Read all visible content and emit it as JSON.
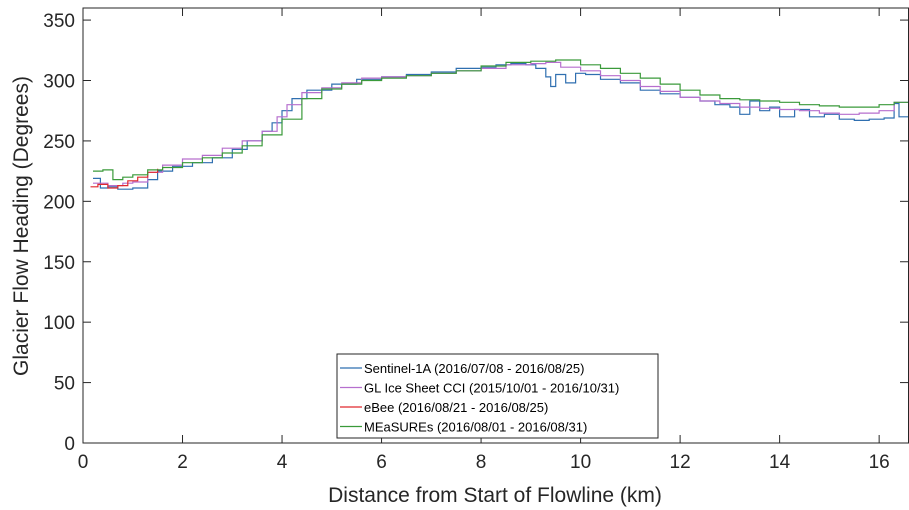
{
  "chart_data": {
    "type": "line",
    "title": "",
    "xlabel": "Distance from Start of Flowline (km)",
    "ylabel": "Glacier Flow Heading (Degrees)",
    "xlim": [
      0,
      16.6
    ],
    "ylim": [
      0,
      360
    ],
    "xticks": [
      0,
      2,
      4,
      6,
      8,
      10,
      12,
      14,
      16
    ],
    "yticks": [
      0,
      50,
      100,
      150,
      200,
      250,
      300,
      350
    ],
    "grid": false,
    "legend_position": "bottom-center",
    "series": [
      {
        "name": "Sentinel-1A (2016/07/08 - 2016/08/25)",
        "color": "#2f6fb0",
        "x": [
          0.2,
          0.35,
          0.5,
          0.7,
          1.0,
          1.3,
          1.5,
          1.8,
          2.2,
          2.6,
          3.0,
          3.3,
          3.6,
          3.8,
          4.0,
          4.2,
          4.5,
          5.0,
          5.5,
          6.0,
          6.5,
          7.0,
          7.5,
          8.0,
          8.3,
          8.6,
          8.9,
          9.1,
          9.3,
          9.4,
          9.5,
          9.7,
          9.9,
          10.1,
          10.4,
          10.8,
          11.2,
          11.6,
          12.0,
          12.4,
          12.7,
          13.0,
          13.2,
          13.4,
          13.6,
          13.8,
          14.0,
          14.3,
          14.6,
          14.9,
          15.2,
          15.5,
          15.8,
          16.1,
          16.3,
          16.4,
          16.6
        ],
        "y": [
          219,
          211,
          212,
          210,
          211,
          218,
          225,
          229,
          232,
          236,
          243,
          250,
          258,
          265,
          275,
          285,
          292,
          297,
          301,
          303,
          305,
          307,
          310,
          311,
          313,
          314,
          313,
          310,
          303,
          295,
          305,
          298,
          306,
          305,
          301,
          298,
          292,
          289,
          286,
          283,
          280,
          278,
          272,
          283,
          275,
          278,
          270,
          276,
          270,
          272,
          268,
          267,
          268,
          269,
          281,
          270,
          268
        ]
      },
      {
        "name": "GL Ice Sheet CCI (2015/10/01 - 2016/10/31)",
        "color": "#b66fce",
        "x": [
          0.2,
          0.5,
          0.8,
          1.0,
          1.3,
          1.6,
          2.0,
          2.4,
          2.8,
          3.2,
          3.6,
          3.9,
          4.1,
          4.4,
          4.8,
          5.2,
          5.6,
          6.0,
          6.5,
          7.0,
          7.5,
          8.0,
          8.5,
          9.0,
          9.3,
          9.6,
          10.0,
          10.4,
          10.8,
          11.2,
          11.6,
          12.0,
          12.4,
          12.8,
          13.2,
          13.6,
          14.0,
          14.4,
          14.8,
          15.2,
          15.6,
          16.0,
          16.3,
          16.6
        ],
        "y": [
          215,
          213,
          215,
          216,
          224,
          230,
          235,
          238,
          244,
          250,
          258,
          270,
          280,
          290,
          294,
          298,
          302,
          303,
          304,
          306,
          308,
          310,
          313,
          314,
          315,
          311,
          308,
          304,
          300,
          295,
          291,
          286,
          283,
          281,
          278,
          277,
          276,
          275,
          273,
          272,
          273,
          275,
          282,
          281
        ]
      },
      {
        "name": "eBee (2016/08/21 - 2016/08/25)",
        "color": "#e0292f",
        "x": [
          0.15,
          0.3,
          0.5,
          0.7,
          0.9,
          1.1,
          1.3,
          1.5
        ],
        "y": [
          212,
          214,
          211,
          213,
          217,
          220,
          224,
          227
        ]
      },
      {
        "name": "MEaSUREs (2016/08/01 - 2016/08/31)",
        "color": "#3a9a3a",
        "x": [
          0.2,
          0.4,
          0.6,
          0.8,
          1.0,
          1.3,
          1.6,
          2.0,
          2.4,
          2.8,
          3.2,
          3.6,
          4.0,
          4.4,
          4.8,
          5.2,
          5.6,
          6.0,
          6.5,
          7.0,
          7.5,
          8.0,
          8.5,
          9.0,
          9.5,
          10.0,
          10.4,
          10.8,
          11.2,
          11.6,
          12.0,
          12.4,
          12.8,
          13.2,
          13.6,
          14.0,
          14.4,
          14.8,
          15.2,
          15.6,
          16.0,
          16.3,
          16.6
        ],
        "y": [
          225,
          226,
          218,
          220,
          222,
          226,
          228,
          232,
          236,
          240,
          246,
          255,
          268,
          285,
          293,
          297,
          300,
          302,
          304,
          306,
          308,
          312,
          315,
          316,
          317,
          313,
          310,
          306,
          302,
          297,
          292,
          288,
          285,
          284,
          283,
          282,
          280,
          279,
          278,
          278,
          280,
          282,
          283
        ]
      }
    ]
  }
}
